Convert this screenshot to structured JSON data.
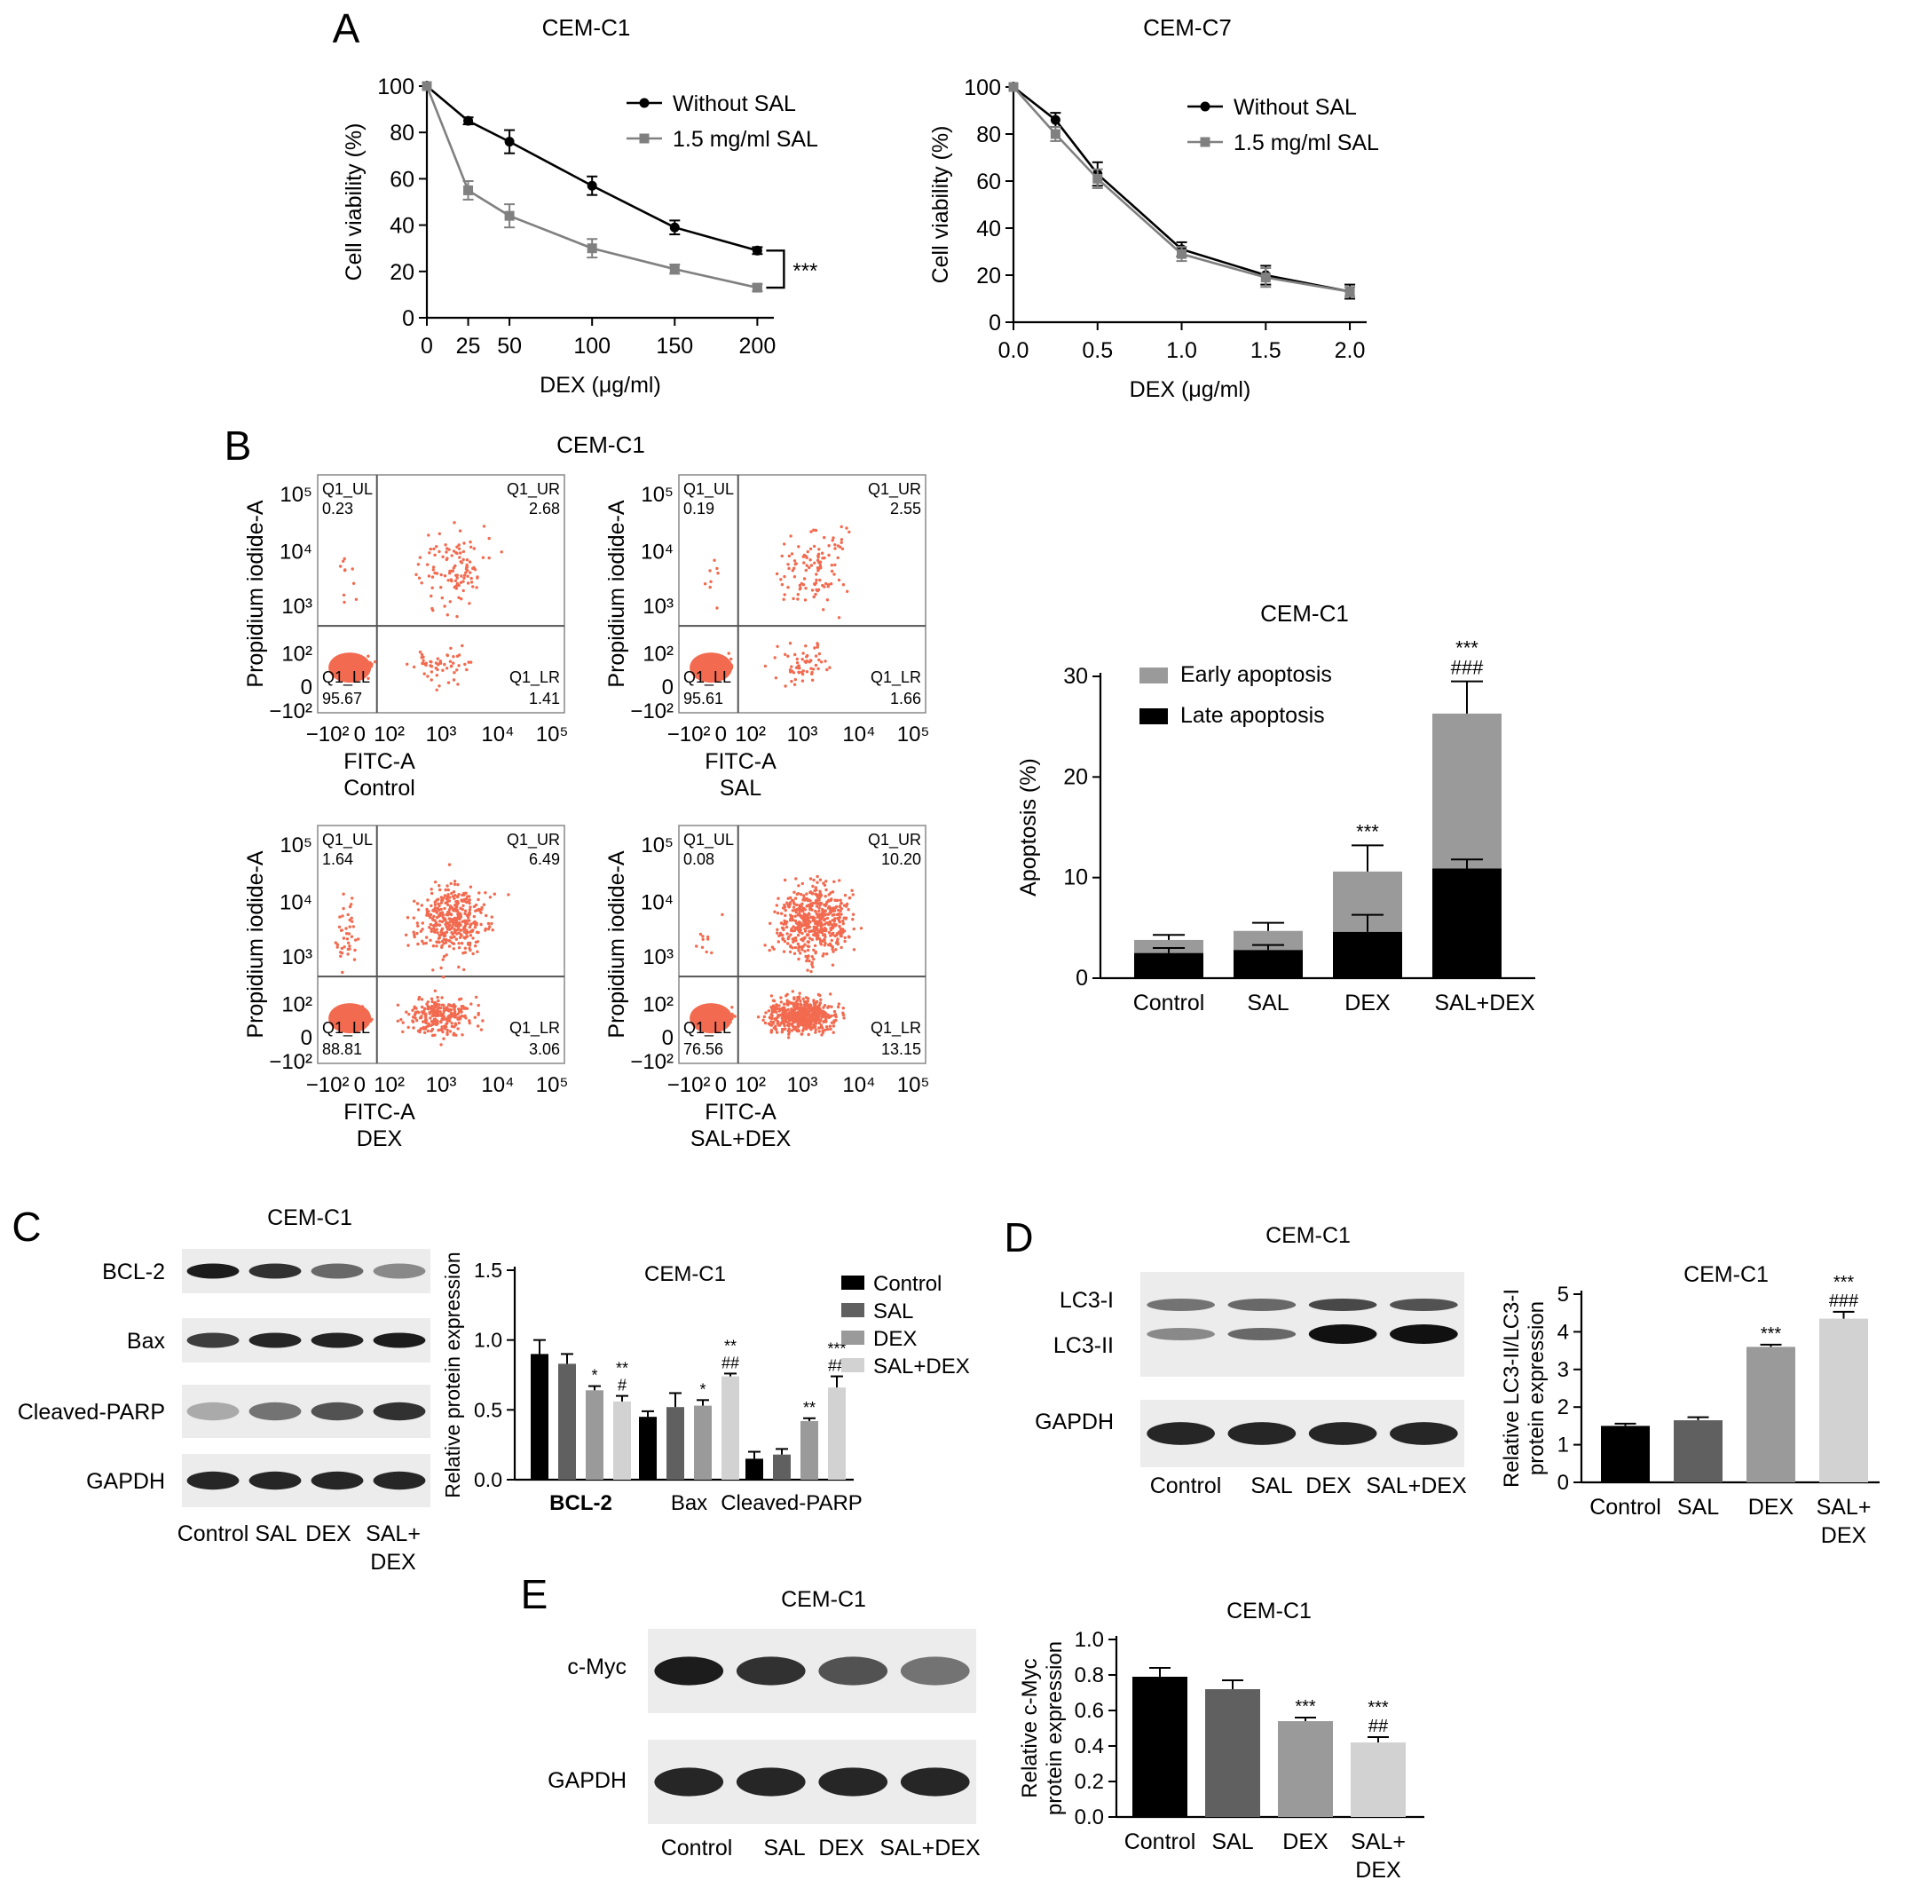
{
  "panel_labels": [
    "A",
    "B",
    "C",
    "D",
    "E"
  ],
  "colors": {
    "black": "#000000",
    "dark_gray": "#606060",
    "gray": "#9a9a9b",
    "light_gray": "#d2d2d2",
    "line_gray": "#808080",
    "flow_dot": "#f26a4f"
  },
  "chart_data": [
    {
      "id": "A-left",
      "type": "line",
      "title": "CEM-C1",
      "xlabel": "DEX (μg/ml)",
      "ylabel": "Cell viability (%)",
      "x": [
        0,
        25,
        50,
        100,
        150,
        200
      ],
      "x_ticks": [
        "0",
        "25",
        "50",
        "100",
        "150",
        "200"
      ],
      "xlim": [
        0,
        210
      ],
      "y_ticks": [
        "0",
        "20",
        "40",
        "60",
        "80",
        "100"
      ],
      "ylim": [
        0,
        100
      ],
      "series": [
        {
          "name": "Without SAL",
          "marker": "circle",
          "color": "#000000",
          "values": [
            100,
            85,
            76,
            57,
            39,
            29
          ],
          "errors": [
            0,
            1.5,
            5,
            4,
            3,
            1.5
          ]
        },
        {
          "name": "1.5 mg/ml SAL",
          "marker": "square",
          "color": "#808080",
          "values": [
            100,
            55,
            44,
            30,
            21,
            13
          ],
          "errors": [
            0,
            4,
            5,
            4,
            2,
            1.5
          ]
        }
      ],
      "annotation": "***",
      "legend": "top-right"
    },
    {
      "id": "A-right",
      "type": "line",
      "title": "CEM-C7",
      "xlabel": "DEX (μg/ml)",
      "ylabel": "Cell viability (%)",
      "x": [
        0,
        0.25,
        0.5,
        1.0,
        1.5,
        2.0
      ],
      "x_ticks": [
        "0.0",
        "0.5",
        "1.0",
        "1.5",
        "2.0"
      ],
      "xlim": [
        0,
        2.1
      ],
      "y_ticks": [
        "0",
        "20",
        "40",
        "60",
        "80",
        "100"
      ],
      "ylim": [
        0,
        100
      ],
      "series": [
        {
          "name": "Without SAL",
          "marker": "circle",
          "color": "#000000",
          "values": [
            100,
            86,
            63,
            31,
            20,
            13
          ],
          "errors": [
            0,
            3,
            5,
            3,
            4,
            3
          ]
        },
        {
          "name": "1.5 mg/ml SAL",
          "marker": "square",
          "color": "#808080",
          "values": [
            100,
            80,
            61,
            29,
            19,
            13
          ],
          "errors": [
            0,
            3,
            4,
            3,
            4,
            2
          ]
        }
      ],
      "legend": "top-right"
    },
    {
      "id": "B-flow",
      "type": "scatter",
      "title": "CEM-C1",
      "xlabel": "FITC-A",
      "ylabel": "Propidium iodide-A",
      "x_ticks": [
        "−10²",
        "0",
        "10²",
        "10³",
        "10⁴",
        "10⁵"
      ],
      "y_ticks": [
        "−10²",
        "0",
        "10²",
        "10³",
        "10⁴",
        "10⁵"
      ],
      "quadrant_labels": [
        "Q1_UL",
        "Q1_UR",
        "Q1_LL",
        "Q1_LR"
      ],
      "plots": [
        {
          "condition": "Control",
          "UL": "0.23",
          "UR": "2.68",
          "LL": "95.67",
          "LR": "1.41"
        },
        {
          "condition": "SAL",
          "UL": "0.19",
          "UR": "2.55",
          "LL": "95.61",
          "LR": "1.66"
        },
        {
          "condition": "DEX",
          "UL": "1.64",
          "UR": "6.49",
          "LL": "88.81",
          "LR": "3.06"
        },
        {
          "condition": "SAL+DEX",
          "UL": "0.08",
          "UR": "10.20",
          "LL": "76.56",
          "LR": "13.15"
        }
      ]
    },
    {
      "id": "B-bar",
      "type": "bar",
      "stacked": true,
      "title": "CEM-C1",
      "ylabel": "Apoptosis (%)",
      "categories": [
        "Control",
        "SAL",
        "DEX",
        "SAL+DEX"
      ],
      "y_ticks": [
        "0",
        "10",
        "20",
        "30"
      ],
      "ylim": [
        0,
        30
      ],
      "series": [
        {
          "name": "Late apoptosis",
          "color": "#000000",
          "values": [
            2.5,
            2.8,
            4.6,
            10.9
          ],
          "errors": [
            0.5,
            0.5,
            1.7,
            0.9
          ]
        },
        {
          "name": "Early apoptosis",
          "color": "#9a9a9b",
          "values": [
            1.3,
            1.9,
            6.0,
            15.4
          ],
          "errors": [
            0.5,
            0.8,
            2.6,
            3.2
          ]
        }
      ],
      "annotations": [
        [],
        [],
        [
          "***"
        ],
        [
          "***",
          "###"
        ]
      ],
      "legend": "top-left"
    },
    {
      "id": "C-bar",
      "type": "bar",
      "title": "CEM-C1",
      "ylabel": "Relative protein expression",
      "categories": [
        "BCL-2",
        "Bax",
        "Cleaved-PARP"
      ],
      "y_ticks": [
        "0.0",
        "0.5",
        "1.0",
        "1.5"
      ],
      "ylim": [
        0,
        1.5
      ],
      "series": [
        {
          "name": "Control",
          "color": "#000000",
          "values": [
            0.9,
            0.45,
            0.15
          ],
          "errors": [
            0.1,
            0.04,
            0.05
          ]
        },
        {
          "name": "SAL",
          "color": "#606060",
          "values": [
            0.83,
            0.52,
            0.18
          ],
          "errors": [
            0.07,
            0.1,
            0.04
          ]
        },
        {
          "name": "DEX",
          "color": "#9a9a9b",
          "values": [
            0.64,
            0.53,
            0.42
          ],
          "errors": [
            0.03,
            0.04,
            0.02
          ]
        },
        {
          "name": "SAL+DEX",
          "color": "#d2d2d2",
          "values": [
            0.56,
            0.74,
            0.66
          ],
          "errors": [
            0.04,
            0.02,
            0.08
          ]
        }
      ],
      "annotations": [
        [
          "",
          "",
          "*",
          "**|#"
        ],
        [
          "",
          "",
          "*",
          "**|##"
        ],
        [
          "",
          "",
          "**",
          "***|##"
        ]
      ],
      "legend": "top-right"
    },
    {
      "id": "D-bar",
      "type": "bar",
      "title": "CEM-C1",
      "ylabel": "Relative LC3-II/LC3-I protein expression",
      "categories": [
        "Control",
        "SAL",
        "DEX",
        "SAL+\nDEX"
      ],
      "y_ticks": [
        "0",
        "1",
        "2",
        "3",
        "4",
        "5"
      ],
      "ylim": [
        0,
        5
      ],
      "values": [
        1.5,
        1.65,
        3.6,
        4.35
      ],
      "errors": [
        0.06,
        0.08,
        0.06,
        0.18
      ],
      "colors": [
        "#000000",
        "#606060",
        "#9a9a9b",
        "#d2d2d2"
      ],
      "annotations": [
        "",
        "",
        "***",
        "***|###"
      ]
    },
    {
      "id": "E-bar",
      "type": "bar",
      "title": "CEM-C1",
      "ylabel": "Relative c-Myc protein expression",
      "categories": [
        "Control",
        "SAL",
        "DEX",
        "SAL+\nDEX"
      ],
      "y_ticks": [
        "0.0",
        "0.2",
        "0.4",
        "0.6",
        "0.8",
        "1.0"
      ],
      "ylim": [
        0,
        1.0
      ],
      "values": [
        0.79,
        0.72,
        0.54,
        0.42
      ],
      "errors": [
        0.05,
        0.05,
        0.02,
        0.03
      ],
      "colors": [
        "#000000",
        "#606060",
        "#9a9a9b",
        "#d2d2d2"
      ],
      "annotations": [
        "",
        "",
        "***",
        "***|##"
      ]
    }
  ],
  "blots": {
    "C": {
      "title": "CEM-C1",
      "rows": [
        "BCL-2",
        "Bax",
        "Cleaved-PARP",
        "GAPDH"
      ],
      "lanes": [
        "Control",
        "SAL",
        "DEX",
        "SAL+\nDEX"
      ]
    },
    "D": {
      "title": "CEM-C1",
      "rows": [
        "LC3-I",
        "LC3-II",
        "GAPDH"
      ],
      "lanes": [
        "Control",
        "SAL",
        "DEX",
        "SAL+DEX"
      ]
    },
    "E": {
      "title": "CEM-C1",
      "rows": [
        "c-Myc",
        "GAPDH"
      ],
      "lanes": [
        "Control",
        "SAL",
        "DEX",
        "SAL+DEX"
      ]
    }
  }
}
